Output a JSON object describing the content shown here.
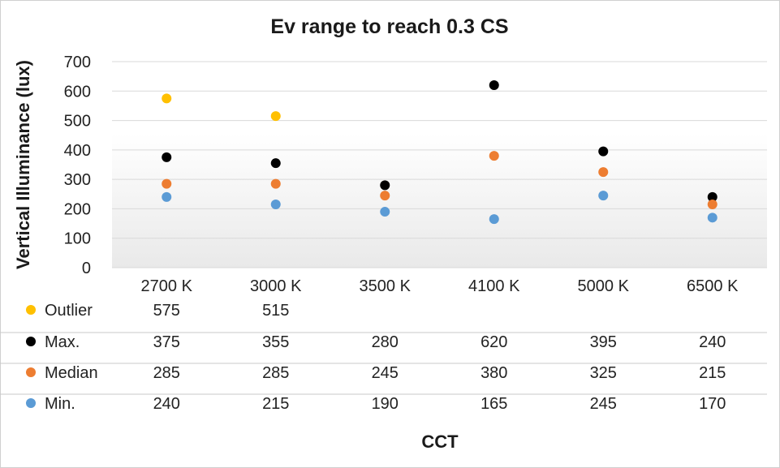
{
  "chart_data": {
    "type": "scatter",
    "title": "Ev range to reach 0.3 CS",
    "xlabel": "CCT",
    "ylabel": "Vertical Illuminance (lux)",
    "ylim": [
      0,
      700
    ],
    "yticks": [
      0,
      100,
      200,
      300,
      400,
      500,
      600,
      700
    ],
    "categories": [
      "2700 K",
      "3000 K",
      "3500 K",
      "4100 K",
      "5000 K",
      "6500 K"
    ],
    "grid": true,
    "legend": "data-table",
    "series": [
      {
        "name": "Outlier",
        "color": "#FFC000",
        "values": [
          575,
          515,
          null,
          null,
          null,
          null
        ]
      },
      {
        "name": "Max.",
        "color": "#000000",
        "values": [
          375,
          355,
          280,
          620,
          395,
          240
        ]
      },
      {
        "name": "Median",
        "color": "#ED7D31",
        "values": [
          285,
          285,
          245,
          380,
          325,
          215
        ]
      },
      {
        "name": "Min.",
        "color": "#5B9BD5",
        "values": [
          240,
          215,
          190,
          165,
          245,
          170
        ]
      }
    ]
  }
}
